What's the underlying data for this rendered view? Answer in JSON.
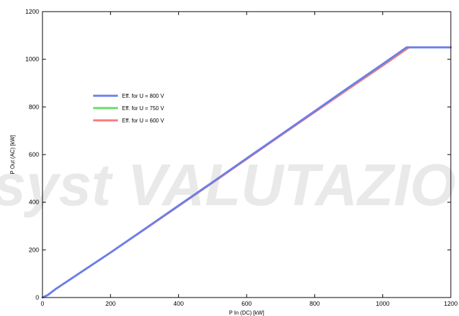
{
  "chart_data": {
    "type": "line",
    "title": "",
    "xlabel": "P In (DC) [kW]",
    "ylabel": "P Out (AC) [kW]",
    "xlim": [
      0,
      1200
    ],
    "ylim": [
      0,
      1200
    ],
    "xticks": [
      0,
      200,
      400,
      600,
      800,
      1000,
      1200
    ],
    "yticks": [
      0,
      200,
      400,
      600,
      800,
      1000,
      1200
    ],
    "grid": false,
    "legend_position": "upper-left",
    "watermark": "syst VALUTAZIO",
    "series": [
      {
        "name": "Eff. for U = 800 V",
        "color": "#6b7fe8",
        "x": [
          0,
          15,
          40,
          100,
          200,
          300,
          400,
          500,
          600,
          700,
          800,
          900,
          1000,
          1070,
          1200
        ],
        "y": [
          0,
          10,
          37,
          94,
          189,
          287,
          386,
          484,
          584,
          683,
          782,
          882,
          980,
          1050,
          1050
        ]
      },
      {
        "name": "Eff. for U = 750 V",
        "color": "#66dd66",
        "x": [
          0,
          15,
          40,
          100,
          200,
          300,
          400,
          500,
          600,
          700,
          800,
          900,
          1000,
          1072,
          1200
        ],
        "y": [
          0,
          10,
          37,
          94,
          189,
          287,
          385,
          483,
          583,
          682,
          781,
          880,
          978,
          1050,
          1050
        ]
      },
      {
        "name": "Eff. for U = 600 V",
        "color": "#ff7777",
        "x": [
          0,
          15,
          40,
          100,
          200,
          300,
          400,
          500,
          600,
          700,
          800,
          900,
          1000,
          1078,
          1200
        ],
        "y": [
          0,
          10,
          36,
          93,
          188,
          285,
          383,
          481,
          580,
          679,
          777,
          875,
          972,
          1050,
          1050
        ]
      }
    ]
  }
}
